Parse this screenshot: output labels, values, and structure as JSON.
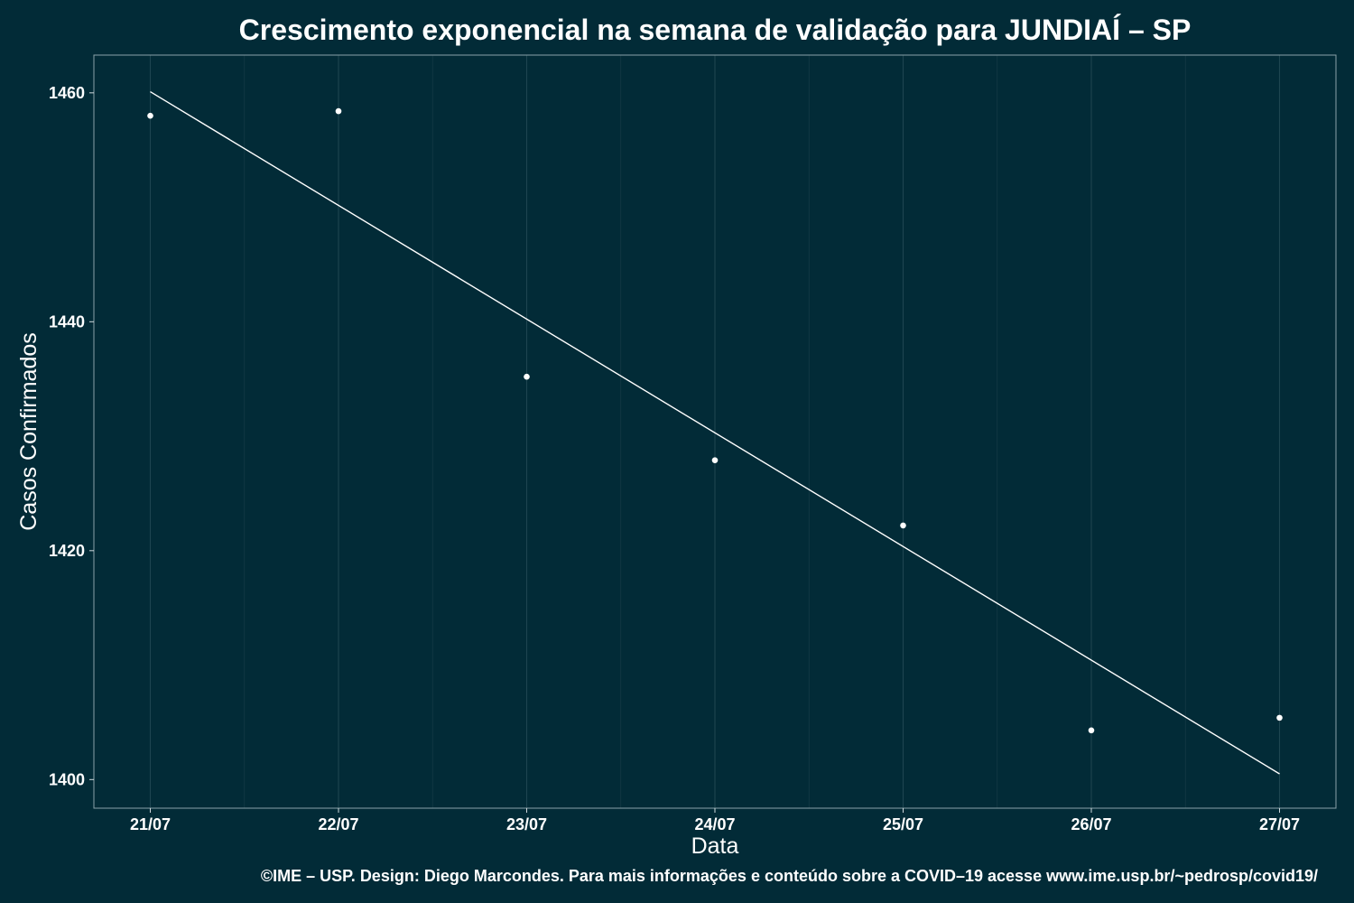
{
  "chart_data": {
    "type": "scatter",
    "title": "Crescimento exponencial na semana de validação para JUNDIAÍ – SP",
    "xlabel": "Data",
    "ylabel": "Casos Confirmados",
    "caption": "©IME – USP. Design: Diego Marcondes. Para mais informações e conteúdo sobre a COVID–19 acesse www.ime.usp.br/~pedrosp/covid19/",
    "categories": [
      "21/07",
      "22/07",
      "23/07",
      "24/07",
      "25/07",
      "26/07",
      "27/07"
    ],
    "values": [
      1458,
      1458.4,
      1435.2,
      1427.9,
      1422.2,
      1404.3,
      1405.4
    ],
    "fit_line": {
      "x": [
        "21/07",
        "27/07"
      ],
      "y": [
        1460.1,
        1400.5
      ]
    },
    "y_ticks": [
      1400,
      1420,
      1440,
      1460
    ],
    "ylim": [
      1397.5,
      1463.3
    ],
    "grid": true,
    "colors": {
      "background": "#022b37",
      "points": "#ffffff",
      "line": "#ffffff"
    }
  }
}
